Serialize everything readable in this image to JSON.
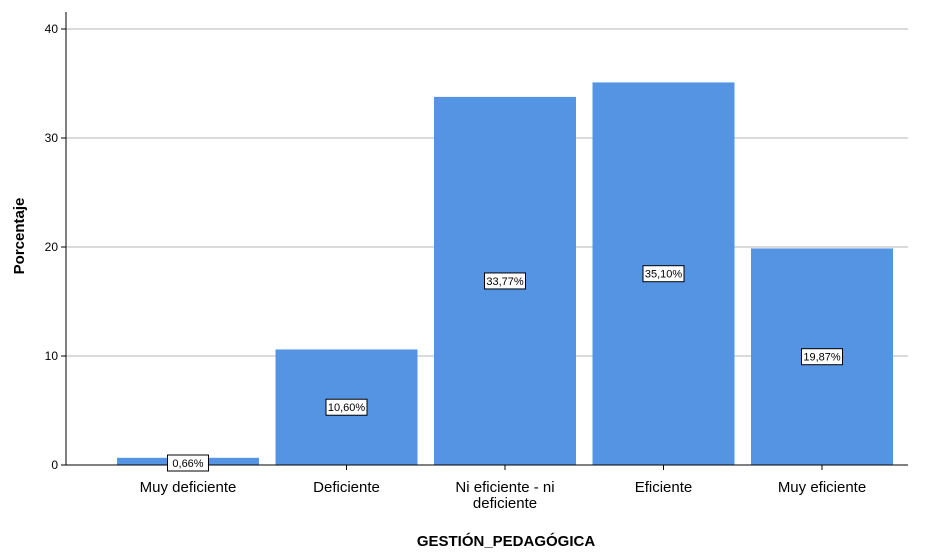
{
  "chart_data": {
    "type": "bar",
    "title": "",
    "xlabel": "GESTIÓN_PEDAGÓGICA",
    "ylabel": "Porcentaje",
    "ylim": [
      0,
      40
    ],
    "yticks": [
      0,
      10,
      20,
      30,
      40
    ],
    "grid": true,
    "categories": [
      [
        "Muy deficiente"
      ],
      [
        "Deficiente"
      ],
      [
        "Ni eficiente - ni",
        "deficiente"
      ],
      [
        "Eficiente"
      ],
      [
        "Muy eficiente"
      ]
    ],
    "values": [
      0.66,
      10.6,
      33.77,
      35.1,
      19.87
    ],
    "data_labels": [
      "0,66%",
      "10,60%",
      "33,77%",
      "35,10%",
      "19,87%"
    ],
    "bar_color": "#5494e3",
    "grid_color": "#b4b4b4",
    "axis_color": "#000000"
  }
}
